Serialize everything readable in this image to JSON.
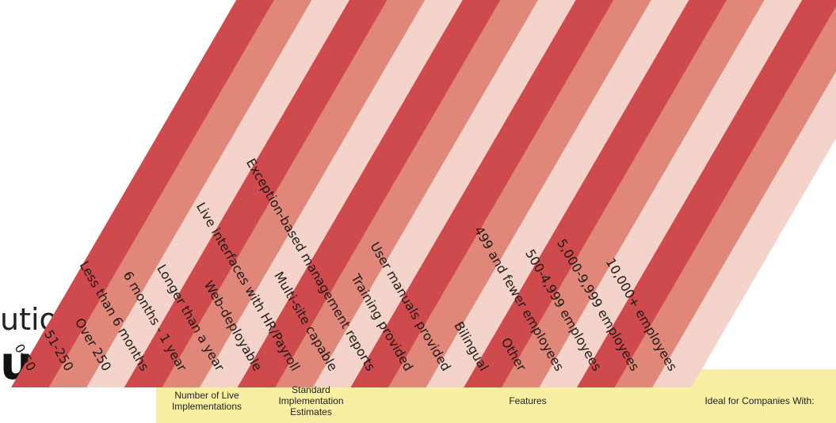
{
  "title": {
    "line1": "utions",
    "line2": "uide"
  },
  "colors": {
    "dark": "#CF4A4C",
    "medium": "#E0877A",
    "light": "#F4D3CA",
    "banner": "#F8EFA2"
  },
  "columns": [
    {
      "label": "0-50",
      "shade": "dark"
    },
    {
      "label": "51-250",
      "shade": "medium"
    },
    {
      "label": "Over 250",
      "shade": "light"
    },
    {
      "label": "Less than 6 months",
      "shade": "dark"
    },
    {
      "label": "6 months - 1 year",
      "shade": "medium"
    },
    {
      "label": "Longer than a year",
      "shade": "light"
    },
    {
      "label": "Web-deployable",
      "shade": "dark"
    },
    {
      "label": "Live interfaces with HR/Payroll",
      "shade": "medium"
    },
    {
      "label": "Multi-site capable",
      "shade": "light"
    },
    {
      "label": "Exception-based management reports",
      "shade": "dark"
    },
    {
      "label": "Training provided",
      "shade": "medium"
    },
    {
      "label": "User manuals provided",
      "shade": "light"
    },
    {
      "label": "Bilingual",
      "shade": "dark"
    },
    {
      "label": "Other",
      "shade": "medium"
    },
    {
      "label": "499 and fewer employees",
      "shade": "light"
    },
    {
      "label": "500-4,999 employees",
      "shade": "dark"
    },
    {
      "label": "5,000-9,999 employees",
      "shade": "medium"
    },
    {
      "label": "10,000+ employees",
      "shade": "light"
    }
  ],
  "categories": [
    {
      "lines": [
        "Number of Live",
        "Implementations"
      ]
    },
    {
      "lines": [
        "Standard",
        "Implementation",
        "Estimates"
      ]
    },
    {
      "lines": [
        "Features"
      ]
    },
    {
      "lines": [
        "Ideal for Companies With:"
      ]
    }
  ]
}
